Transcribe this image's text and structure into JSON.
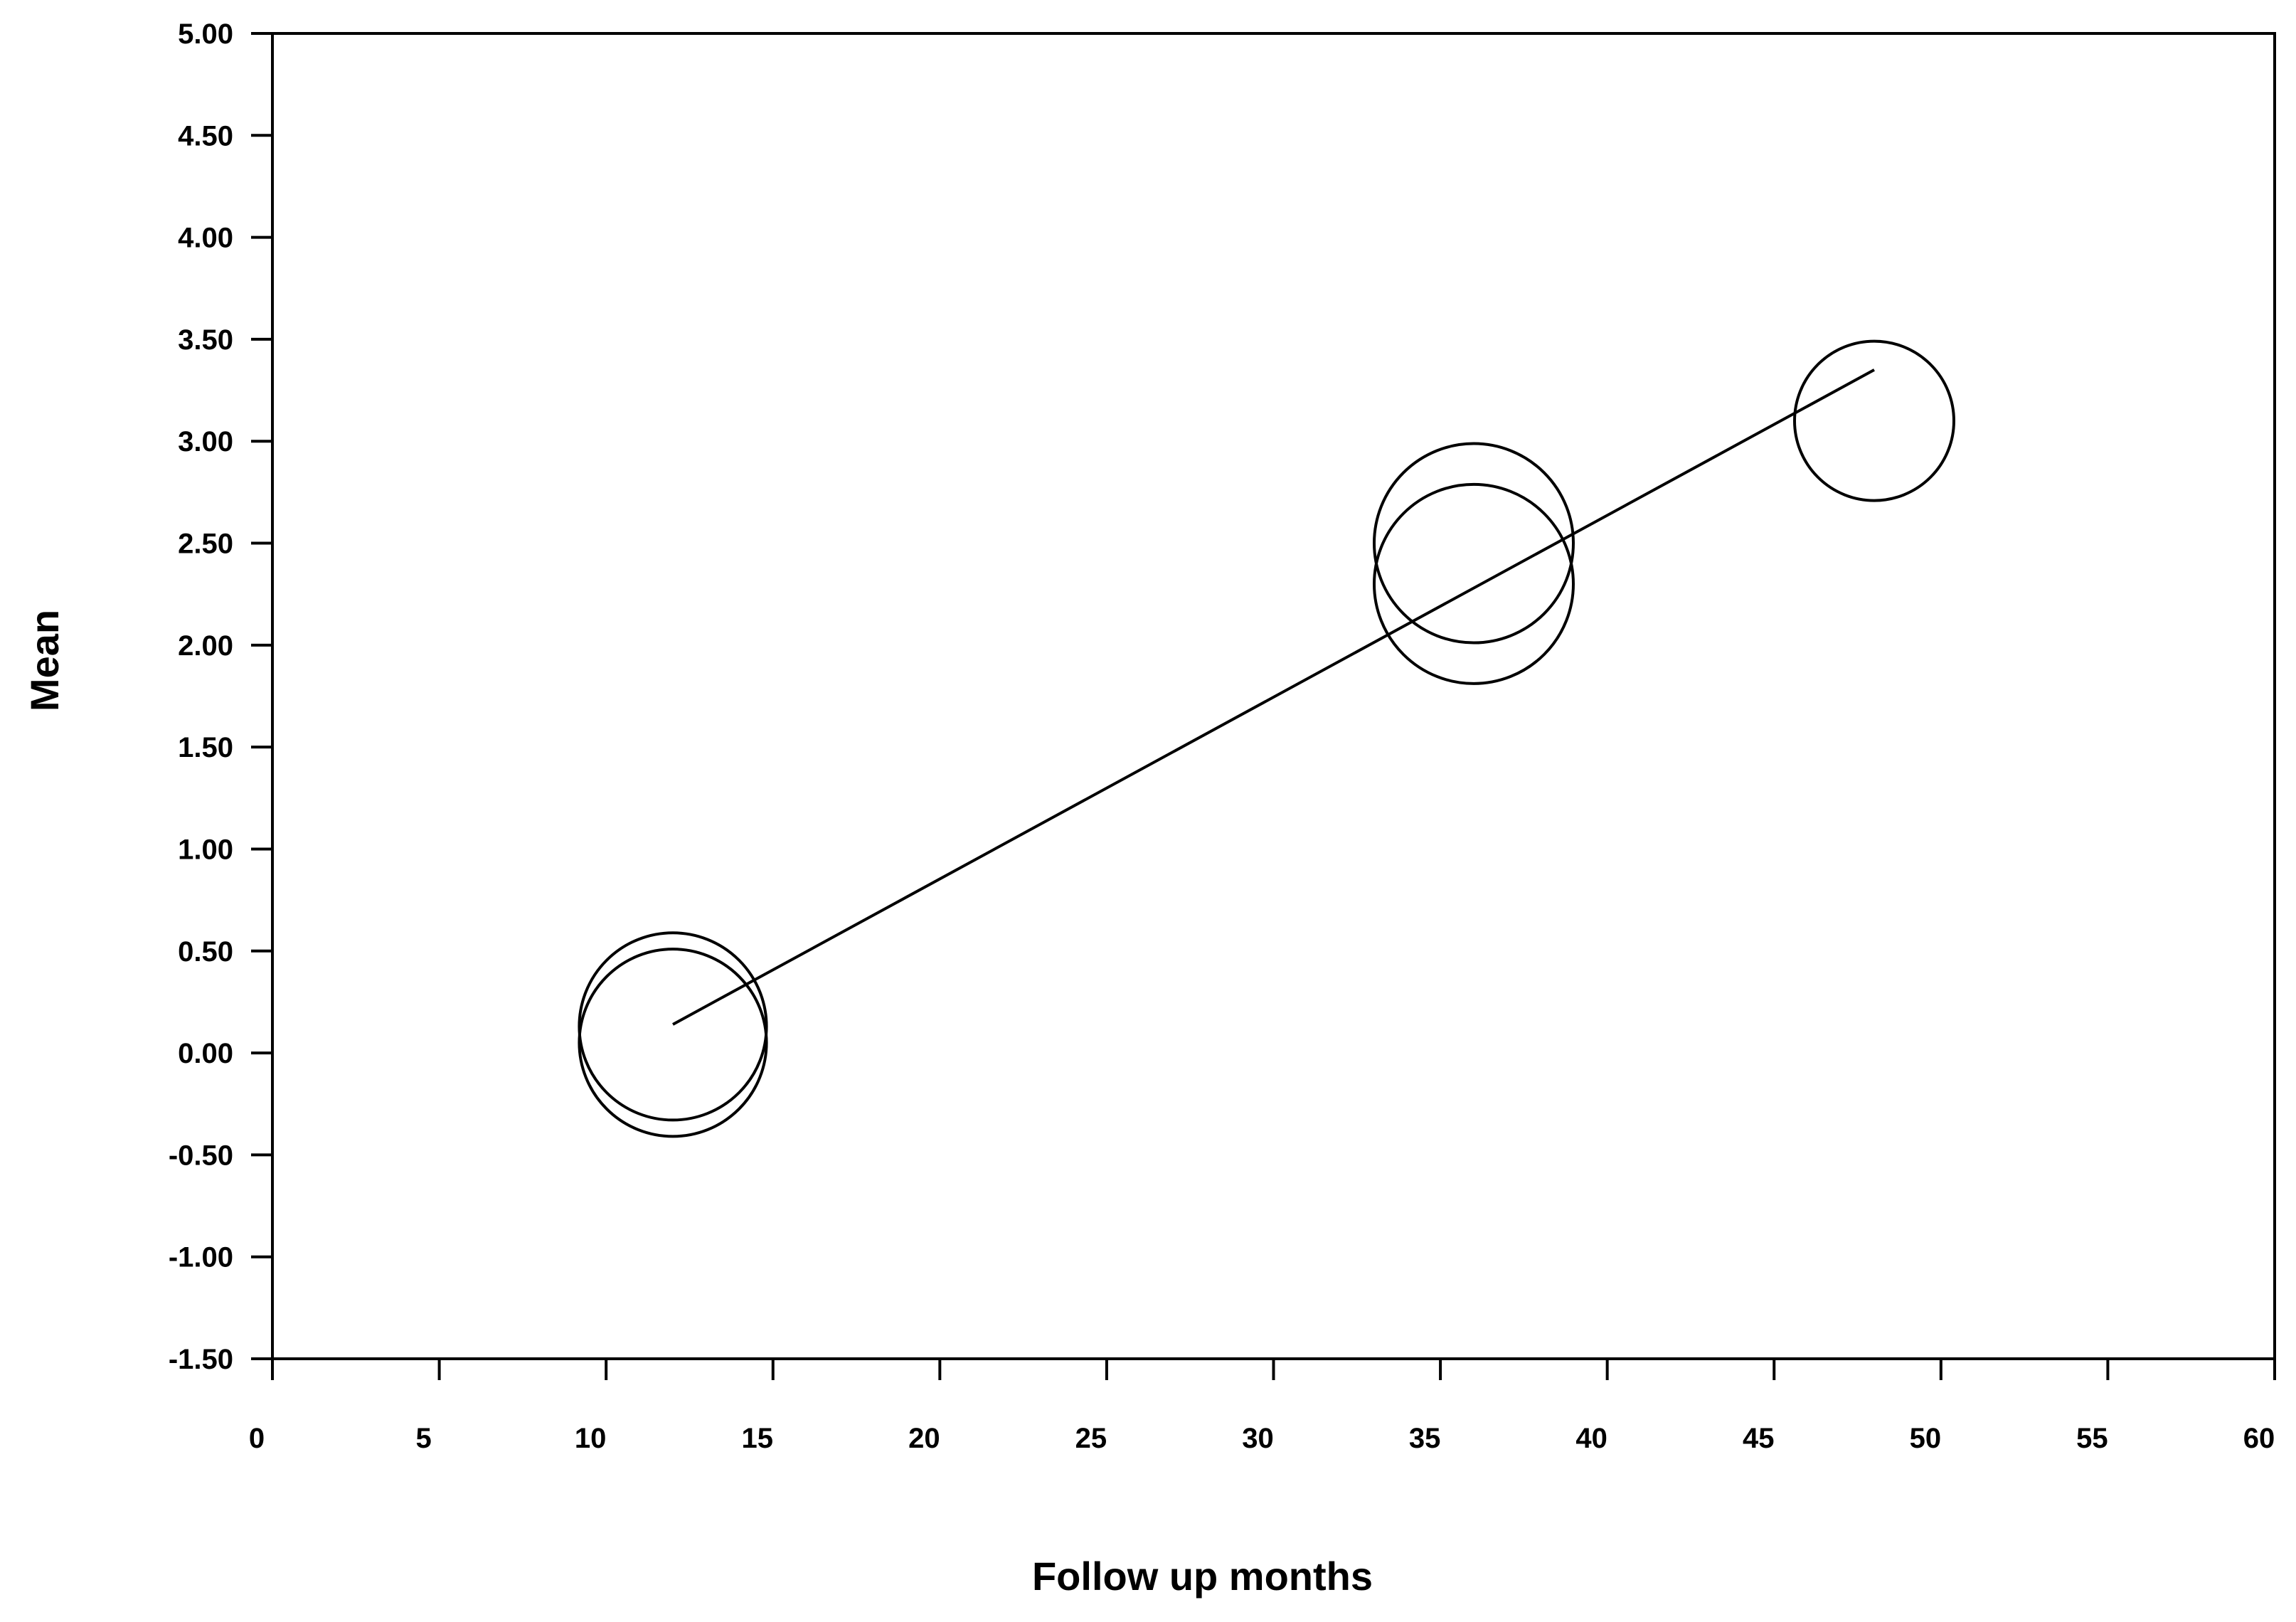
{
  "chart_data": {
    "type": "scatter",
    "title": "",
    "xlabel": "Follow up months",
    "ylabel": "Mean",
    "xlim": [
      0,
      60
    ],
    "ylim": [
      -1.5,
      5.0
    ],
    "x_ticks": [
      "0",
      "5",
      "10",
      "15",
      "20",
      "25",
      "30",
      "35",
      "40",
      "45",
      "50",
      "55",
      "60"
    ],
    "y_ticks": [
      "5.00",
      "4.50",
      "4.00",
      "3.50",
      "3.00",
      "2.50",
      "2.00",
      "1.50",
      "1.00",
      "0.50",
      "0.00",
      "-0.50",
      "-1.00",
      "-1.50"
    ],
    "grid": false,
    "series": [
      {
        "points": [
          {
            "x": 12,
            "y": 0.13,
            "weight": 0.94
          },
          {
            "x": 12,
            "y": 0.05,
            "weight": 0.94
          },
          {
            "x": 36,
            "y": 2.5,
            "weight": 1.0
          },
          {
            "x": 36,
            "y": 2.3,
            "weight": 1.0
          },
          {
            "x": 48,
            "y": 3.1,
            "weight": 0.8
          }
        ]
      }
    ],
    "regression_line": {
      "x": [
        12,
        48
      ],
      "y": [
        0.14,
        3.35
      ]
    },
    "colors": {
      "line": "#000000",
      "marker_stroke": "#000000",
      "background": "#ffffff"
    }
  }
}
